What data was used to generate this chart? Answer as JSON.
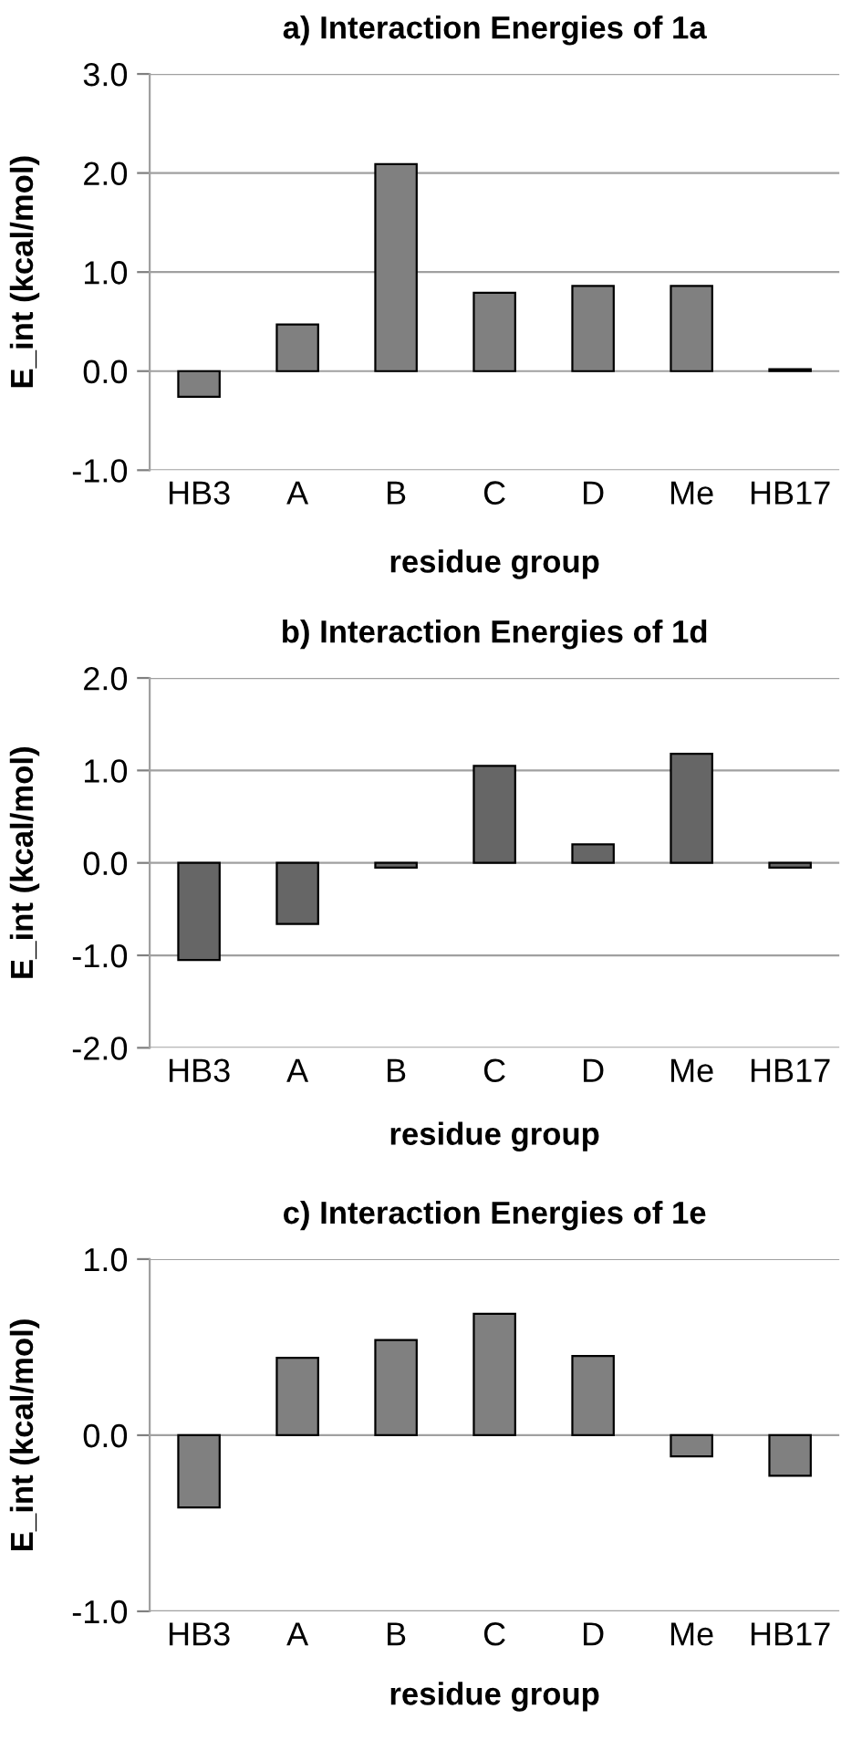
{
  "chart_data": [
    {
      "type": "bar",
      "title": "a) Interaction Energies of 1a",
      "xlabel": "residue group",
      "ylabel": "E_int (kcal/mol)",
      "categories": [
        "HB3",
        "A",
        "B",
        "C",
        "D",
        "Me",
        "HB17"
      ],
      "values": [
        -0.26,
        0.47,
        2.09,
        0.79,
        0.86,
        0.86,
        0.02
      ],
      "color": "#808080",
      "ylim": [
        -1.0,
        3.0
      ],
      "yticks": [
        {
          "value": -1.0,
          "label": "-1.0"
        },
        {
          "value": 0.0,
          "label": "0.0"
        },
        {
          "value": 1.0,
          "label": "1.0"
        },
        {
          "value": 2.0,
          "label": "2.0"
        },
        {
          "value": 3.0,
          "label": "3.0"
        }
      ],
      "grid": "y"
    },
    {
      "type": "bar",
      "title": "b) Interaction Energies of 1d",
      "xlabel": "residue group",
      "ylabel": "E_int (kcal/mol)",
      "categories": [
        "HB3",
        "A",
        "B",
        "C",
        "D",
        "Me",
        "HB17"
      ],
      "values": [
        -1.05,
        -0.66,
        -0.05,
        1.05,
        0.2,
        1.18,
        -0.05
      ],
      "color": "#666666",
      "ylim": [
        -2.0,
        2.0
      ],
      "yticks": [
        {
          "value": -2.0,
          "label": "-2.0"
        },
        {
          "value": -1.0,
          "label": "-1.0"
        },
        {
          "value": 0.0,
          "label": "0.0"
        },
        {
          "value": 1.0,
          "label": "1.0"
        },
        {
          "value": 2.0,
          "label": "2.0"
        }
      ],
      "grid": "y"
    },
    {
      "type": "bar",
      "title": "c) Interaction Energies of 1e",
      "xlabel": "residue group",
      "ylabel": "E_int (kcal/mol)",
      "categories": [
        "HB3",
        "A",
        "B",
        "C",
        "D",
        "Me",
        "HB17"
      ],
      "values": [
        -0.41,
        0.44,
        0.54,
        0.69,
        0.45,
        -0.12,
        -0.23
      ],
      "color": "#808080",
      "ylim": [
        -1.0,
        1.0
      ],
      "yticks": [
        {
          "value": -1.0,
          "label": "-1.0"
        },
        {
          "value": 0.0,
          "label": "0.0"
        },
        {
          "value": 1.0,
          "label": "1.0"
        }
      ],
      "grid": "y"
    }
  ]
}
